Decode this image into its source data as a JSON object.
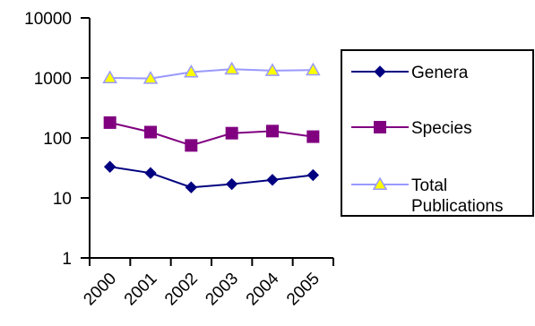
{
  "chart_data": {
    "type": "line",
    "title": "",
    "xlabel": "",
    "ylabel": "",
    "x": [
      "2000",
      "2001",
      "2002",
      "2003",
      "2004",
      "2005"
    ],
    "y_scale": "log",
    "ylim": [
      1,
      10000
    ],
    "y_ticks": [
      "1",
      "10",
      "100",
      "1000",
      "10000"
    ],
    "grid": false,
    "legend_position": "right",
    "series": [
      {
        "name": "Genera",
        "values": [
          33,
          26,
          15,
          17,
          20,
          24
        ],
        "color": "#000080",
        "marker": "diamond"
      },
      {
        "name": "Species",
        "values": [
          180,
          125,
          75,
          120,
          130,
          105
        ],
        "color": "#800080",
        "marker": "square"
      },
      {
        "name": "Total Publications",
        "name_lines": [
          "Total",
          "Publications"
        ],
        "values": [
          1000,
          980,
          1250,
          1400,
          1320,
          1350
        ],
        "color": "#9999ff",
        "marker": "triangle",
        "marker_fill": "#ffff00"
      }
    ]
  }
}
